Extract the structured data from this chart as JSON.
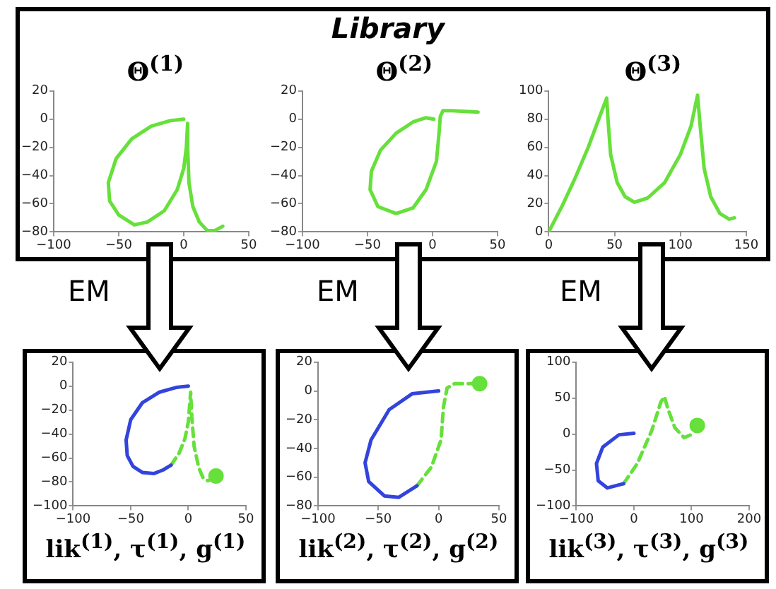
{
  "chart_data": [
    {
      "type": "line",
      "title": "Θ$^{(1)}$",
      "xlim": [
        -100,
        50
      ],
      "xticks": [
        -100,
        -50,
        0,
        50
      ],
      "ylim": [
        -80,
        20
      ],
      "yticks": [
        -80,
        -60,
        -40,
        -20,
        0,
        20
      ],
      "series": [
        {
          "type": "line",
          "color": "#66e03a",
          "x": [
            0,
            -10,
            -25,
            -40,
            -52,
            -58,
            -57,
            -50,
            -38,
            -28,
            -15,
            -5,
            0,
            2,
            3,
            3,
            4,
            7,
            12,
            18,
            24,
            30
          ],
          "values": [
            0,
            -1,
            -5,
            -14,
            -28,
            -45,
            -58,
            -68,
            -75,
            -73,
            -65,
            -50,
            -35,
            -20,
            -3,
            -20,
            -45,
            -62,
            -73,
            -79,
            -79,
            -76
          ]
        }
      ]
    },
    {
      "type": "line",
      "title": "Θ$^{(2)}$",
      "xlim": [
        -100,
        50
      ],
      "xticks": [
        -100,
        -50,
        0,
        50
      ],
      "ylim": [
        -80,
        20
      ],
      "yticks": [
        -80,
        -60,
        -40,
        -20,
        0,
        20
      ],
      "series": [
        {
          "type": "line",
          "color": "#66e03a",
          "x": [
            1,
            -5,
            -15,
            -28,
            -40,
            -47,
            -48,
            -42,
            -28,
            -15,
            -5,
            3,
            5,
            6,
            8,
            15,
            35
          ],
          "values": [
            0,
            1,
            -2,
            -10,
            -22,
            -37,
            -50,
            -62,
            -67,
            -63,
            -50,
            -30,
            -10,
            2,
            6,
            6,
            5
          ]
        }
      ]
    },
    {
      "type": "line",
      "title": "Θ$^{(3)}$",
      "xlim": [
        0,
        150
      ],
      "xticks": [
        0,
        50,
        100,
        150
      ],
      "ylim": [
        0,
        100
      ],
      "yticks": [
        0,
        20,
        40,
        60,
        80,
        100
      ],
      "series": [
        {
          "type": "line",
          "color": "#66e03a",
          "x": [
            0,
            10,
            20,
            30,
            38,
            44,
            45,
            47,
            52,
            58,
            65,
            75,
            88,
            100,
            108,
            113,
            115,
            118,
            123,
            130,
            137,
            141
          ],
          "values": [
            0,
            18,
            38,
            60,
            80,
            95,
            80,
            55,
            35,
            25,
            21,
            24,
            35,
            55,
            75,
            97,
            75,
            45,
            25,
            13,
            9,
            10
          ]
        }
      ]
    },
    {
      "type": "line",
      "xlabel": "lik$^{(1)}$, τ$^{(1)}$, g$^{(1)}$",
      "xlim": [
        -100,
        50
      ],
      "xticks": [
        -100,
        -50,
        0,
        50
      ],
      "ylim": [
        -100,
        20
      ],
      "yticks": [
        -100,
        -80,
        -60,
        -40,
        -20,
        0,
        20
      ],
      "series": [
        {
          "type": "line",
          "color": "#3344dd",
          "x": [
            0,
            -10,
            -25,
            -40,
            -50,
            -54,
            -53,
            -48,
            -40,
            -30,
            -22,
            -15
          ],
          "values": [
            0,
            -1,
            -5,
            -14,
            -28,
            -45,
            -58,
            -67,
            -72,
            -73,
            -70,
            -66
          ]
        },
        {
          "type": "line",
          "line_style": "dashed",
          "color": "#66e03a",
          "x": [
            -15,
            -8,
            -3,
            0,
            2,
            3,
            5,
            9,
            13,
            17,
            22
          ],
          "values": [
            -66,
            -56,
            -44,
            -30,
            -5,
            -25,
            -50,
            -68,
            -77,
            -79,
            -77
          ]
        },
        {
          "type": "scatter",
          "marker": "circle",
          "color": "#66e03a",
          "x": [
            24
          ],
          "values": [
            -75
          ]
        }
      ]
    },
    {
      "type": "line",
      "xlabel": "lik$^{(2)}$, τ$^{(2)}$, g$^{(2)}$",
      "xlim": [
        -100,
        50
      ],
      "xticks": [
        -100,
        -50,
        0,
        50
      ],
      "ylim": [
        -80,
        20
      ],
      "yticks": [
        -80,
        -60,
        -40,
        -20,
        0,
        20
      ],
      "series": [
        {
          "type": "line",
          "color": "#3344dd",
          "x": [
            0,
            -22,
            -41,
            -56,
            -61,
            -58,
            -45,
            -33,
            -18
          ],
          "values": [
            0,
            -2,
            -13,
            -34,
            -50,
            -63,
            -73,
            -74,
            -66
          ]
        },
        {
          "type": "line",
          "line_style": "dashed",
          "color": "#66e03a",
          "x": [
            -18,
            -6,
            2,
            4,
            7,
            13,
            28
          ],
          "values": [
            -66,
            -53,
            -34,
            -11,
            2,
            5,
            5
          ]
        },
        {
          "type": "scatter",
          "marker": "circle",
          "color": "#66e03a",
          "x": [
            34
          ],
          "values": [
            5
          ]
        }
      ]
    },
    {
      "type": "line",
      "xlabel": "lik$^{(3)}$, τ$^{(3)}$, g$^{(3)}$",
      "xlim": [
        -100,
        200
      ],
      "xticks": [
        -100,
        0,
        100,
        200
      ],
      "ylim": [
        -100,
        100
      ],
      "yticks": [
        -100,
        -50,
        0,
        50,
        100
      ],
      "series": [
        {
          "type": "line",
          "color": "#3344dd",
          "x": [
            0,
            -26,
            -54,
            -65,
            -62,
            -46,
            -18
          ],
          "values": [
            1,
            -1,
            -18,
            -41,
            -65,
            -75,
            -69
          ]
        },
        {
          "type": "line",
          "line_style": "dashed",
          "color": "#66e03a",
          "x": [
            -18,
            6,
            31,
            47,
            53,
            59,
            71,
            87,
            99
          ],
          "values": [
            -69,
            -41,
            5,
            45,
            52,
            35,
            9,
            -5,
            -1
          ]
        },
        {
          "type": "scatter",
          "marker": "circle",
          "color": "#66e03a",
          "x": [
            110
          ],
          "values": [
            12
          ]
        }
      ]
    },
    {
      "type": "other",
      "title": "Library",
      "annotations": [
        "EM",
        "EM",
        "EM"
      ]
    }
  ]
}
